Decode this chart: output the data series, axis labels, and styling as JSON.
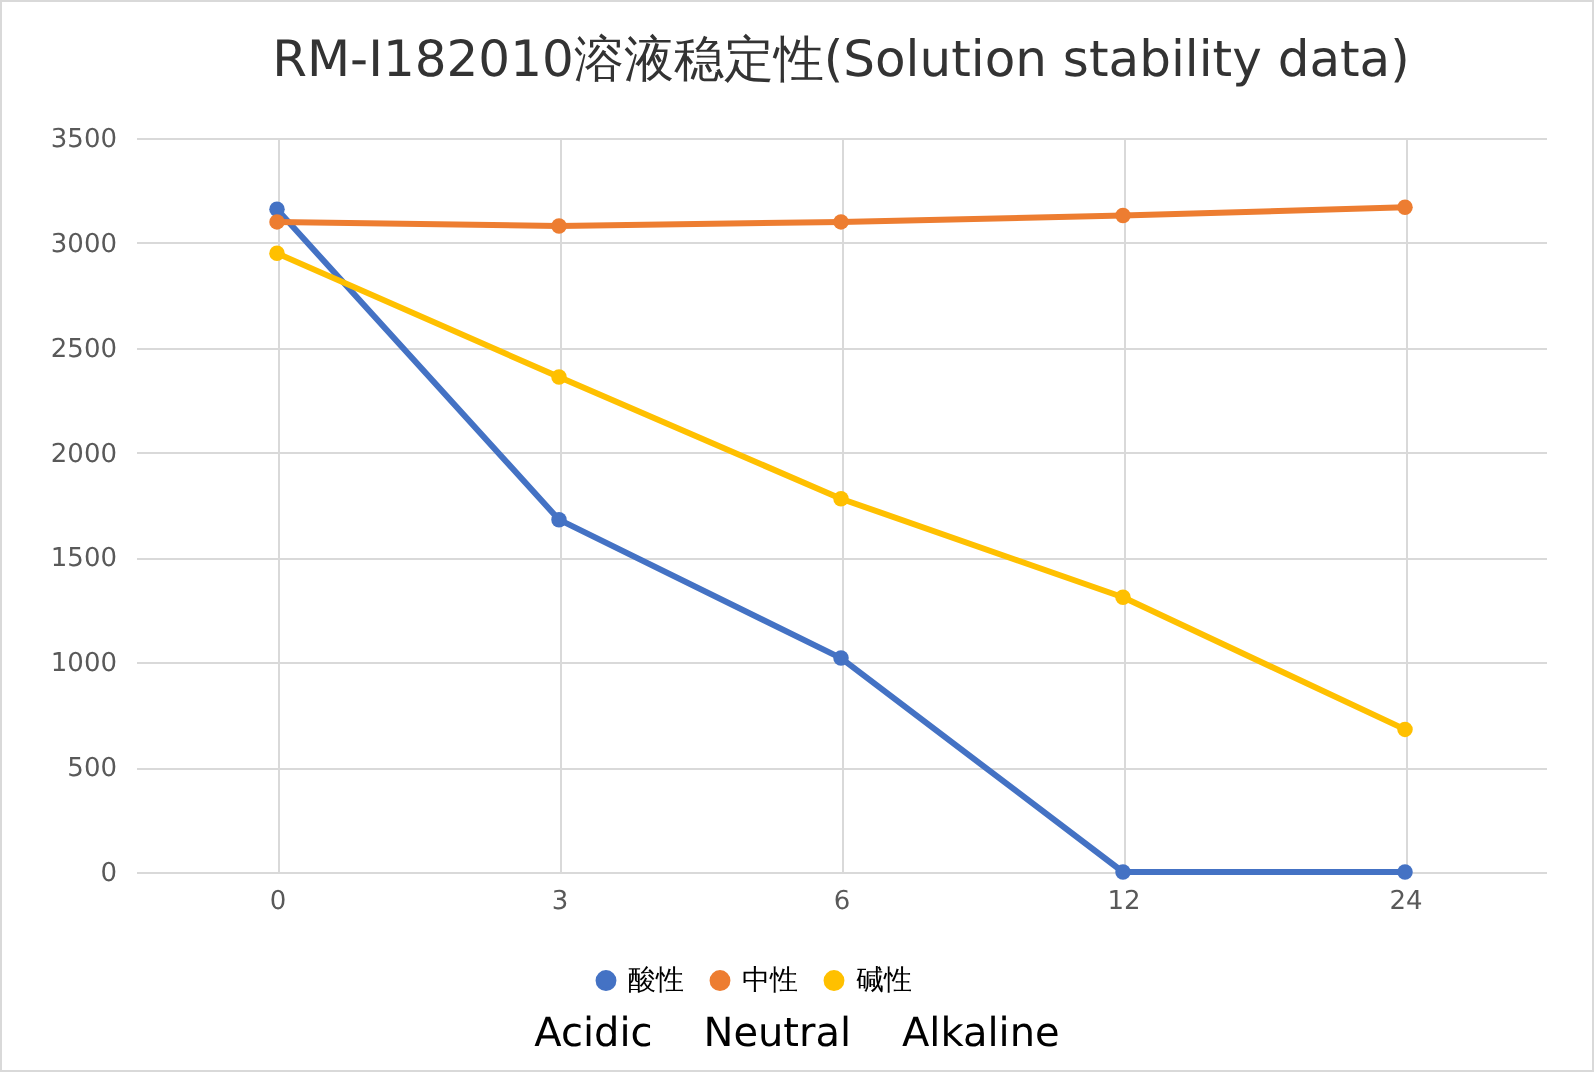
{
  "chart_data": {
    "type": "line",
    "title": "RM-I182010溶液稳定性(Solution stability data)",
    "categories": [
      "0",
      "3",
      "6",
      "12",
      "24"
    ],
    "series": [
      {
        "name": "酸性",
        "color": "#4472c4",
        "values": [
          3160,
          1680,
          1020,
          0,
          0
        ]
      },
      {
        "name": "中性",
        "color": "#ed7d31",
        "values": [
          3100,
          3080,
          3100,
          3130,
          3170
        ]
      },
      {
        "name": "碱性",
        "color": "#ffc000",
        "values": [
          2950,
          2360,
          1780,
          1310,
          680
        ]
      }
    ],
    "ylim": [
      0,
      3500
    ],
    "yticks": [
      0,
      500,
      1000,
      1500,
      2000,
      2500,
      3000,
      3500
    ],
    "grid": true,
    "legend": "bottom",
    "marker": "circle",
    "line_style": "solid",
    "annotations": [
      "Acidic    Neutral    Alkaline"
    ]
  }
}
